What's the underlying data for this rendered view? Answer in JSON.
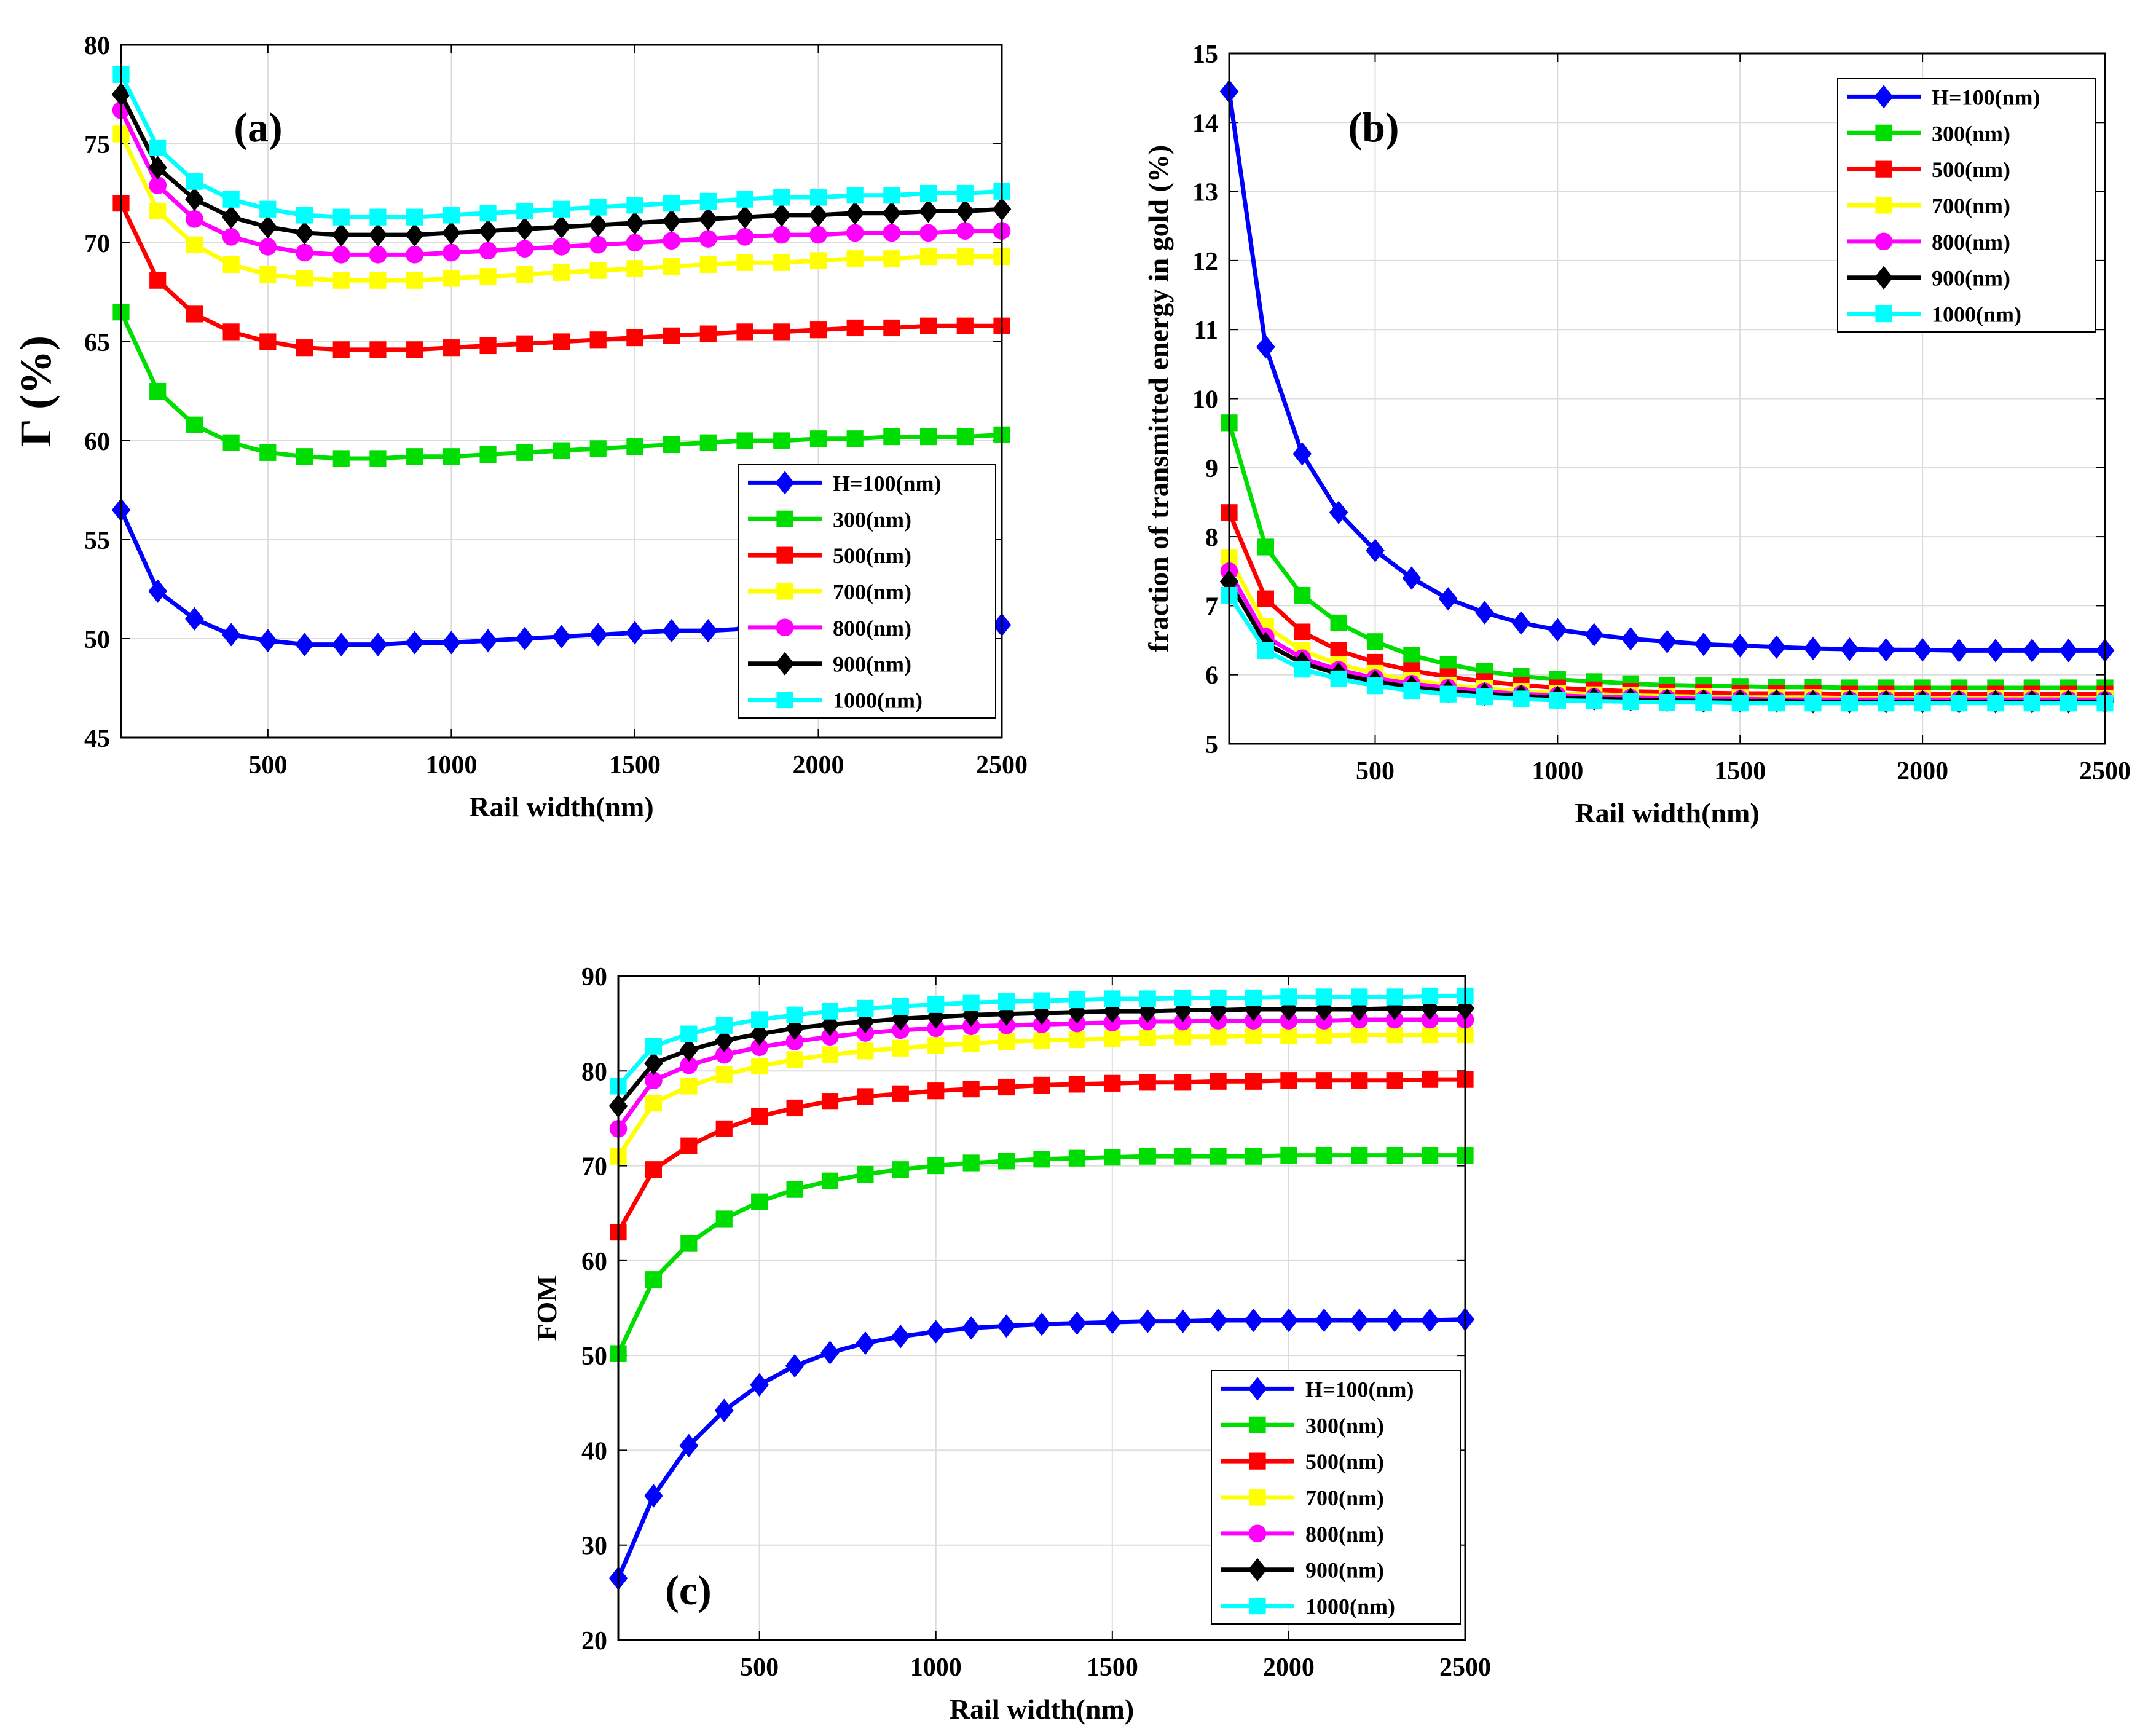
{
  "figure": {
    "background": "#ffffff"
  },
  "chart_data": [
    {
      "id": "a",
      "type": "line",
      "panel_label": "(a)",
      "xlabel": "Rail width(nm)",
      "ylabel": "Γ (%)",
      "xlim": [
        100,
        2500
      ],
      "ylim": [
        45,
        80
      ],
      "xticks": [
        500,
        1000,
        1500,
        2000,
        2500
      ],
      "yticks": [
        45,
        50,
        55,
        60,
        65,
        70,
        75,
        80
      ],
      "grid": true,
      "legend_position": "lower-right",
      "x": [
        100,
        200,
        300,
        400,
        500,
        600,
        700,
        800,
        900,
        1000,
        1100,
        1200,
        1300,
        1400,
        1500,
        1600,
        1700,
        1800,
        1900,
        2000,
        2100,
        2200,
        2300,
        2400,
        2500
      ],
      "series": [
        {
          "name": "H=100(nm)",
          "color": "#0000ff",
          "marker": "diamond",
          "values": [
            56.5,
            52.4,
            51.0,
            50.2,
            49.9,
            49.7,
            49.7,
            49.7,
            49.8,
            49.8,
            49.9,
            50.0,
            50.1,
            50.2,
            50.3,
            50.4,
            50.4,
            50.5,
            50.5,
            50.5,
            50.6,
            50.6,
            50.6,
            50.6,
            50.7
          ]
        },
        {
          "name": "300(nm)",
          "color": "#00dd00",
          "marker": "square",
          "values": [
            66.5,
            62.5,
            60.8,
            59.9,
            59.4,
            59.2,
            59.1,
            59.1,
            59.2,
            59.2,
            59.3,
            59.4,
            59.5,
            59.6,
            59.7,
            59.8,
            59.9,
            60.0,
            60.0,
            60.1,
            60.1,
            60.2,
            60.2,
            60.2,
            60.3
          ]
        },
        {
          "name": "500(nm)",
          "color": "#ff0000",
          "marker": "square",
          "values": [
            72.0,
            68.1,
            66.4,
            65.5,
            65.0,
            64.7,
            64.6,
            64.6,
            64.6,
            64.7,
            64.8,
            64.9,
            65.0,
            65.1,
            65.2,
            65.3,
            65.4,
            65.5,
            65.5,
            65.6,
            65.7,
            65.7,
            65.8,
            65.8,
            65.8
          ]
        },
        {
          "name": "700(nm)",
          "color": "#ffff00",
          "marker": "square",
          "values": [
            75.5,
            71.6,
            69.9,
            68.9,
            68.4,
            68.2,
            68.1,
            68.1,
            68.1,
            68.2,
            68.3,
            68.4,
            68.5,
            68.6,
            68.7,
            68.8,
            68.9,
            69.0,
            69.0,
            69.1,
            69.2,
            69.2,
            69.3,
            69.3,
            69.3
          ]
        },
        {
          "name": "800(nm)",
          "color": "#ff00ff",
          "marker": "circle",
          "values": [
            76.7,
            72.9,
            71.2,
            70.3,
            69.8,
            69.5,
            69.4,
            69.4,
            69.4,
            69.5,
            69.6,
            69.7,
            69.8,
            69.9,
            70.0,
            70.1,
            70.2,
            70.3,
            70.4,
            70.4,
            70.5,
            70.5,
            70.5,
            70.6,
            70.6
          ]
        },
        {
          "name": "900(nm)",
          "color": "#000000",
          "marker": "diamond",
          "values": [
            77.5,
            73.8,
            72.2,
            71.3,
            70.8,
            70.5,
            70.4,
            70.4,
            70.4,
            70.5,
            70.6,
            70.7,
            70.8,
            70.9,
            71.0,
            71.1,
            71.2,
            71.3,
            71.4,
            71.4,
            71.5,
            71.5,
            71.6,
            71.6,
            71.7
          ]
        },
        {
          "name": "1000(nm)",
          "color": "#00ffff",
          "marker": "square",
          "values": [
            78.5,
            74.8,
            73.1,
            72.2,
            71.7,
            71.4,
            71.3,
            71.3,
            71.3,
            71.4,
            71.5,
            71.6,
            71.7,
            71.8,
            71.9,
            72.0,
            72.1,
            72.2,
            72.3,
            72.3,
            72.4,
            72.4,
            72.5,
            72.5,
            72.6
          ]
        }
      ]
    },
    {
      "id": "b",
      "type": "line",
      "panel_label": "(b)",
      "xlabel": "Rail width(nm)",
      "ylabel": "fraction of transmitted energy in gold (%)",
      "xlim": [
        100,
        2500
      ],
      "ylim": [
        5,
        15
      ],
      "xticks": [
        500,
        1000,
        1500,
        2000,
        2500
      ],
      "yticks": [
        5,
        6,
        7,
        8,
        9,
        10,
        11,
        12,
        13,
        14,
        15
      ],
      "grid": true,
      "legend_position": "upper-right",
      "x": [
        100,
        200,
        300,
        400,
        500,
        600,
        700,
        800,
        900,
        1000,
        1100,
        1200,
        1300,
        1400,
        1500,
        1600,
        1700,
        1800,
        1900,
        2000,
        2100,
        2200,
        2300,
        2400,
        2500
      ],
      "series": [
        {
          "name": "H=100(nm)",
          "color": "#0000ff",
          "marker": "diamond",
          "values": [
            14.45,
            10.75,
            9.2,
            8.35,
            7.8,
            7.4,
            7.1,
            6.9,
            6.75,
            6.65,
            6.58,
            6.52,
            6.48,
            6.44,
            6.42,
            6.4,
            6.38,
            6.37,
            6.36,
            6.36,
            6.35,
            6.35,
            6.35,
            6.35,
            6.35
          ]
        },
        {
          "name": "300(nm)",
          "color": "#00dd00",
          "marker": "square",
          "values": [
            9.65,
            7.85,
            7.15,
            6.75,
            6.48,
            6.28,
            6.15,
            6.05,
            5.98,
            5.93,
            5.9,
            5.87,
            5.85,
            5.84,
            5.83,
            5.82,
            5.82,
            5.81,
            5.81,
            5.81,
            5.81,
            5.81,
            5.81,
            5.81,
            5.81
          ]
        },
        {
          "name": "500(nm)",
          "color": "#ff0000",
          "marker": "square",
          "values": [
            8.35,
            7.1,
            6.62,
            6.35,
            6.18,
            6.06,
            5.97,
            5.9,
            5.85,
            5.81,
            5.78,
            5.76,
            5.75,
            5.74,
            5.73,
            5.73,
            5.73,
            5.72,
            5.72,
            5.72,
            5.72,
            5.72,
            5.72,
            5.72,
            5.72
          ]
        },
        {
          "name": "700(nm)",
          "color": "#ffff00",
          "marker": "square",
          "values": [
            7.7,
            6.7,
            6.35,
            6.15,
            6.02,
            5.92,
            5.85,
            5.8,
            5.76,
            5.73,
            5.71,
            5.7,
            5.69,
            5.68,
            5.67,
            5.67,
            5.67,
            5.66,
            5.66,
            5.66,
            5.66,
            5.66,
            5.66,
            5.66,
            5.66
          ]
        },
        {
          "name": "800(nm)",
          "color": "#ff00ff",
          "marker": "circle",
          "values": [
            7.5,
            6.55,
            6.24,
            6.07,
            5.95,
            5.87,
            5.81,
            5.76,
            5.72,
            5.7,
            5.68,
            5.67,
            5.66,
            5.65,
            5.65,
            5.64,
            5.64,
            5.64,
            5.64,
            5.64,
            5.64,
            5.64,
            5.64,
            5.64,
            5.64
          ]
        },
        {
          "name": "900(nm)",
          "color": "#000000",
          "marker": "diamond",
          "values": [
            7.35,
            6.45,
            6.17,
            6.01,
            5.9,
            5.82,
            5.76,
            5.72,
            5.69,
            5.67,
            5.65,
            5.64,
            5.63,
            5.62,
            5.62,
            5.62,
            5.61,
            5.61,
            5.61,
            5.61,
            5.61,
            5.61,
            5.61,
            5.61,
            5.61
          ]
        },
        {
          "name": "1000(nm)",
          "color": "#00ffff",
          "marker": "square",
          "values": [
            7.15,
            6.35,
            6.08,
            5.94,
            5.84,
            5.77,
            5.72,
            5.68,
            5.65,
            5.63,
            5.62,
            5.61,
            5.6,
            5.6,
            5.59,
            5.59,
            5.59,
            5.59,
            5.59,
            5.59,
            5.59,
            5.59,
            5.59,
            5.59,
            5.59
          ]
        }
      ]
    },
    {
      "id": "c",
      "type": "line",
      "panel_label": "(c)",
      "xlabel": "Rail width(nm)",
      "ylabel": "FOM",
      "xlim": [
        100,
        2500
      ],
      "ylim": [
        20,
        90
      ],
      "xticks": [
        500,
        1000,
        1500,
        2000,
        2500
      ],
      "yticks": [
        20,
        30,
        40,
        50,
        60,
        70,
        80,
        90
      ],
      "grid": true,
      "legend_position": "lower-right",
      "x": [
        100,
        200,
        300,
        400,
        500,
        600,
        700,
        800,
        900,
        1000,
        1100,
        1200,
        1300,
        1400,
        1500,
        1600,
        1700,
        1800,
        1900,
        2000,
        2100,
        2200,
        2300,
        2400,
        2500
      ],
      "series": [
        {
          "name": "H=100(nm)",
          "color": "#0000ff",
          "marker": "diamond",
          "values": [
            26.5,
            35.2,
            40.5,
            44.2,
            46.9,
            48.9,
            50.3,
            51.3,
            52.0,
            52.5,
            52.9,
            53.1,
            53.3,
            53.4,
            53.5,
            53.6,
            53.6,
            53.7,
            53.7,
            53.7,
            53.7,
            53.7,
            53.7,
            53.7,
            53.8
          ]
        },
        {
          "name": "300(nm)",
          "color": "#00dd00",
          "marker": "square",
          "values": [
            50.2,
            58.0,
            61.8,
            64.4,
            66.2,
            67.5,
            68.4,
            69.1,
            69.6,
            70.0,
            70.3,
            70.5,
            70.7,
            70.8,
            70.9,
            71.0,
            71.0,
            71.0,
            71.0,
            71.1,
            71.1,
            71.1,
            71.1,
            71.1,
            71.1
          ]
        },
        {
          "name": "500(nm)",
          "color": "#ff0000",
          "marker": "square",
          "values": [
            63.0,
            69.6,
            72.1,
            73.9,
            75.2,
            76.1,
            76.8,
            77.3,
            77.6,
            77.9,
            78.1,
            78.3,
            78.5,
            78.6,
            78.7,
            78.8,
            78.8,
            78.9,
            78.9,
            79.0,
            79.0,
            79.0,
            79.0,
            79.1,
            79.1
          ]
        },
        {
          "name": "700(nm)",
          "color": "#ffff00",
          "marker": "square",
          "values": [
            71.0,
            76.6,
            78.4,
            79.6,
            80.5,
            81.2,
            81.7,
            82.1,
            82.4,
            82.7,
            82.9,
            83.1,
            83.2,
            83.3,
            83.4,
            83.5,
            83.6,
            83.6,
            83.7,
            83.7,
            83.7,
            83.8,
            83.8,
            83.8,
            83.8
          ]
        },
        {
          "name": "800(nm)",
          "color": "#ff00ff",
          "marker": "circle",
          "values": [
            73.9,
            79.0,
            80.6,
            81.7,
            82.5,
            83.1,
            83.6,
            84.0,
            84.3,
            84.5,
            84.7,
            84.8,
            84.9,
            85.0,
            85.1,
            85.2,
            85.2,
            85.3,
            85.3,
            85.3,
            85.3,
            85.4,
            85.4,
            85.4,
            85.4
          ]
        },
        {
          "name": "900(nm)",
          "color": "#000000",
          "marker": "diamond",
          "values": [
            76.3,
            80.8,
            82.2,
            83.2,
            83.9,
            84.5,
            84.9,
            85.2,
            85.5,
            85.7,
            85.9,
            86.0,
            86.1,
            86.2,
            86.3,
            86.3,
            86.4,
            86.4,
            86.5,
            86.5,
            86.5,
            86.5,
            86.6,
            86.6,
            86.6
          ]
        },
        {
          "name": "1000(nm)",
          "color": "#00ffff",
          "marker": "square",
          "values": [
            78.4,
            82.6,
            83.9,
            84.8,
            85.4,
            85.9,
            86.3,
            86.6,
            86.8,
            87.0,
            87.2,
            87.3,
            87.4,
            87.5,
            87.6,
            87.6,
            87.7,
            87.7,
            87.7,
            87.8,
            87.8,
            87.8,
            87.8,
            87.9,
            87.9
          ]
        }
      ]
    }
  ]
}
